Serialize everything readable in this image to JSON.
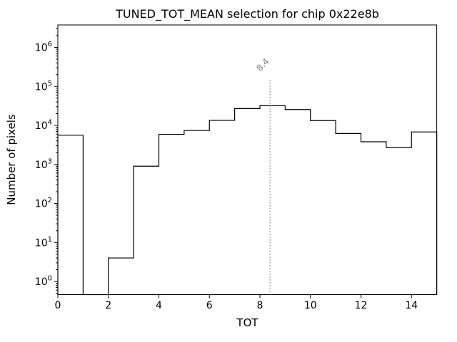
{
  "figure": {
    "background": "#ffffff"
  },
  "chart_data": {
    "type": "bar",
    "style": "step-histogram",
    "title": "TUNED_TOT_MEAN selection for chip 0x22e8b",
    "xlabel": "TOT",
    "ylabel": "Number of pixels",
    "yscale": "log",
    "grid": false,
    "legend": null,
    "xlim": [
      0,
      15
    ],
    "ylim": [
      0.46,
      3760000
    ],
    "bin_edges": [
      0,
      1,
      2,
      3,
      4,
      5,
      6,
      7,
      8,
      9,
      10,
      11,
      12,
      13,
      14,
      15
    ],
    "counts": [
      5600,
      0,
      4,
      900,
      5900,
      7400,
      13500,
      27000,
      32000,
      25500,
      13300,
      6200,
      3800,
      2700,
      6800
    ],
    "x_ticks": [
      0,
      2,
      4,
      6,
      8,
      10,
      12,
      14
    ],
    "y_tick_exponents": [
      0,
      1,
      2,
      3,
      4,
      5,
      6
    ],
    "line_color": "#000000",
    "axis_color": "#000000",
    "vline": {
      "x": 8.4,
      "label": "8.4",
      "color": "#7f7f7f",
      "style": "dotted",
      "ymax_fraction": 0.8
    }
  }
}
